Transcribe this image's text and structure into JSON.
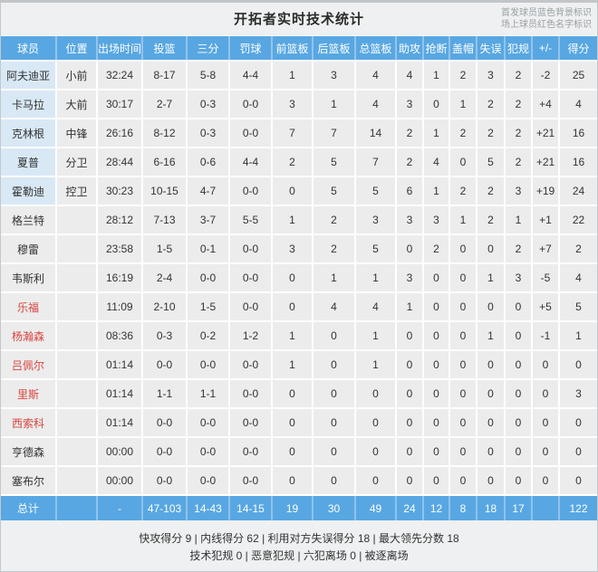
{
  "title": "开拓者实时技术统计",
  "legend": {
    "starter_note": "首发球员蓝色背景标识",
    "oncourt_note": "场上球员红色名字标识"
  },
  "table": {
    "columns": [
      "球员",
      "位置",
      "出场时间",
      "投篮",
      "三分",
      "罚球",
      "前篮板",
      "后篮板",
      "总篮板",
      "助攻",
      "抢断",
      "盖帽",
      "失误",
      "犯规",
      "+/-",
      "得分"
    ],
    "rows": [
      {
        "starter": true,
        "oncourt": false,
        "cells": [
          "阿夫迪亚",
          "小前",
          "32:24",
          "8-17",
          "5-8",
          "4-4",
          "1",
          "3",
          "4",
          "4",
          "1",
          "2",
          "3",
          "2",
          "-2",
          "25"
        ]
      },
      {
        "starter": true,
        "oncourt": false,
        "cells": [
          "卡马拉",
          "大前",
          "30:17",
          "2-7",
          "0-3",
          "0-0",
          "3",
          "1",
          "4",
          "3",
          "0",
          "1",
          "2",
          "2",
          "+4",
          "4"
        ]
      },
      {
        "starter": true,
        "oncourt": false,
        "cells": [
          "克林根",
          "中锋",
          "26:16",
          "8-12",
          "0-3",
          "0-0",
          "7",
          "7",
          "14",
          "2",
          "1",
          "2",
          "2",
          "2",
          "+21",
          "16"
        ]
      },
      {
        "starter": true,
        "oncourt": false,
        "cells": [
          "夏普",
          "分卫",
          "28:44",
          "6-16",
          "0-6",
          "4-4",
          "2",
          "5",
          "7",
          "2",
          "4",
          "0",
          "5",
          "2",
          "+21",
          "16"
        ]
      },
      {
        "starter": true,
        "oncourt": false,
        "cells": [
          "霍勒迪",
          "控卫",
          "30:23",
          "10-15",
          "4-7",
          "0-0",
          "0",
          "5",
          "5",
          "6",
          "1",
          "2",
          "2",
          "3",
          "+19",
          "24"
        ]
      },
      {
        "starter": false,
        "oncourt": false,
        "cells": [
          "格兰特",
          "",
          "28:12",
          "7-13",
          "3-7",
          "5-5",
          "1",
          "2",
          "3",
          "3",
          "3",
          "1",
          "2",
          "1",
          "+1",
          "22"
        ]
      },
      {
        "starter": false,
        "oncourt": false,
        "cells": [
          "穆雷",
          "",
          "23:58",
          "1-5",
          "0-1",
          "0-0",
          "3",
          "2",
          "5",
          "0",
          "2",
          "0",
          "0",
          "2",
          "+7",
          "2"
        ]
      },
      {
        "starter": false,
        "oncourt": false,
        "cells": [
          "韦斯利",
          "",
          "16:19",
          "2-4",
          "0-0",
          "0-0",
          "0",
          "1",
          "1",
          "3",
          "0",
          "0",
          "1",
          "3",
          "-5",
          "4"
        ]
      },
      {
        "starter": false,
        "oncourt": true,
        "cells": [
          "乐福",
          "",
          "11:09",
          "2-10",
          "1-5",
          "0-0",
          "0",
          "4",
          "4",
          "1",
          "0",
          "0",
          "0",
          "0",
          "+5",
          "5"
        ]
      },
      {
        "starter": false,
        "oncourt": true,
        "cells": [
          "杨瀚森",
          "",
          "08:36",
          "0-3",
          "0-2",
          "1-2",
          "1",
          "0",
          "1",
          "0",
          "0",
          "0",
          "1",
          "0",
          "-1",
          "1"
        ]
      },
      {
        "starter": false,
        "oncourt": true,
        "cells": [
          "吕佩尔",
          "",
          "01:14",
          "0-0",
          "0-0",
          "0-0",
          "1",
          "0",
          "1",
          "0",
          "0",
          "0",
          "0",
          "0",
          "0",
          "0"
        ]
      },
      {
        "starter": false,
        "oncourt": true,
        "cells": [
          "里斯",
          "",
          "01:14",
          "1-1",
          "1-1",
          "0-0",
          "0",
          "0",
          "0",
          "0",
          "0",
          "0",
          "0",
          "0",
          "0",
          "3"
        ]
      },
      {
        "starter": false,
        "oncourt": true,
        "cells": [
          "西索科",
          "",
          "01:14",
          "0-0",
          "0-0",
          "0-0",
          "0",
          "0",
          "0",
          "0",
          "0",
          "0",
          "0",
          "0",
          "0",
          "0"
        ]
      },
      {
        "starter": false,
        "oncourt": false,
        "cells": [
          "亨德森",
          "",
          "00:00",
          "0-0",
          "0-0",
          "0-0",
          "0",
          "0",
          "0",
          "0",
          "0",
          "0",
          "0",
          "0",
          "0",
          "0"
        ]
      },
      {
        "starter": false,
        "oncourt": false,
        "cells": [
          "塞布尔",
          "",
          "00:00",
          "0-0",
          "0-0",
          "0-0",
          "0",
          "0",
          "0",
          "0",
          "0",
          "0",
          "0",
          "0",
          "0",
          "0"
        ]
      }
    ],
    "total": {
      "cells": [
        "总计",
        "",
        "-",
        "47-103",
        "14-43",
        "14-15",
        "19",
        "30",
        "49",
        "24",
        "12",
        "8",
        "18",
        "17",
        "",
        "122"
      ]
    }
  },
  "footer": {
    "line1": "快攻得分 9 | 内线得分 62 | 利用对方失误得分 18 | 最大领先分数 18",
    "line2": "技术犯规 0 | 恶意犯规  | 六犯离场 0 | 被逐离场"
  },
  "colors": {
    "header_blue": "#58a7e2",
    "starter_cell_blue": "#d9e8f5",
    "oncourt_name_red": "#d9453f",
    "cell_gray": "#ececec",
    "total_blue": "#58a7e2",
    "legend_gray": "#9aa0a4"
  }
}
